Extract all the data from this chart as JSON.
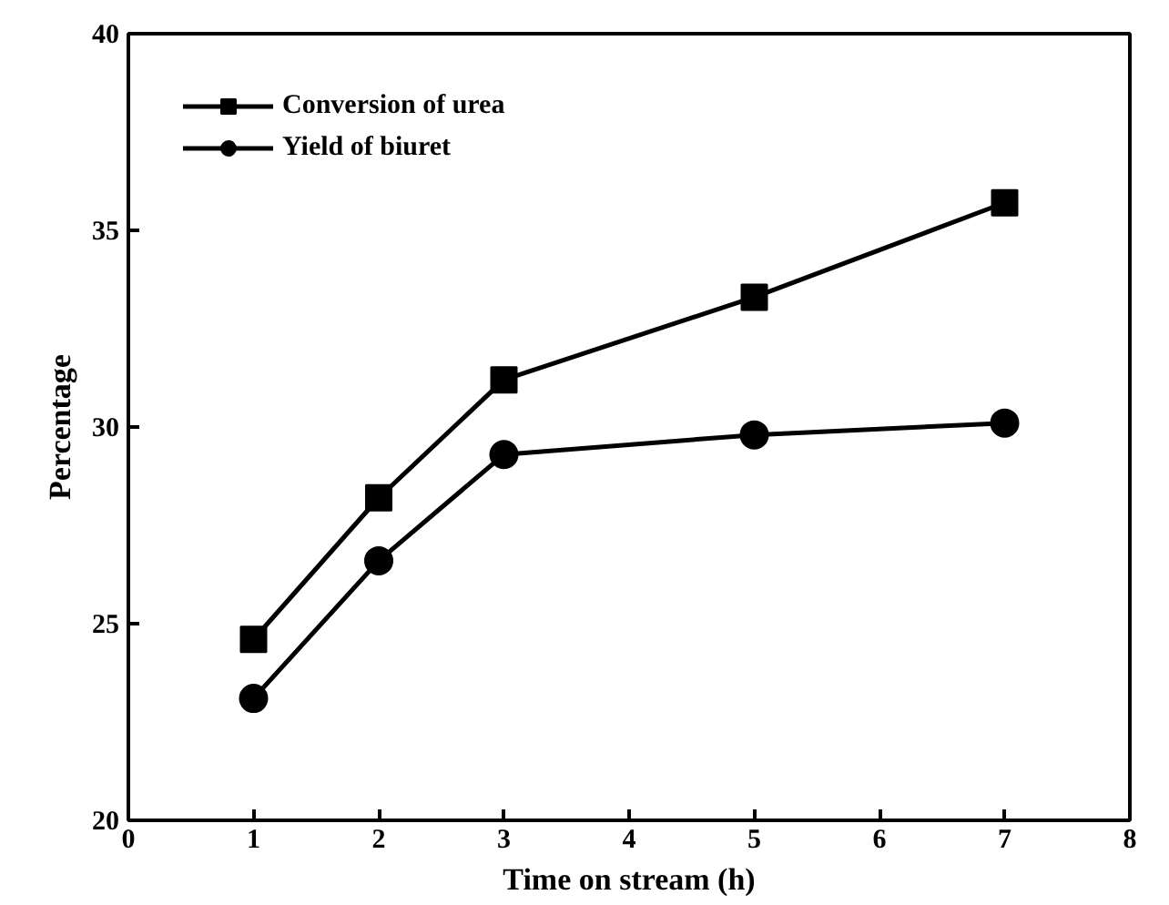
{
  "chart_data": {
    "type": "line",
    "xlabel": "Time on stream (h)",
    "ylabel": "Percentage",
    "x": [
      1,
      2,
      3,
      5,
      7
    ],
    "series": [
      {
        "name": "Conversion of urea",
        "color": "#000000",
        "marker": "square",
        "values": [
          24.6,
          28.2,
          31.2,
          33.3,
          35.7
        ]
      },
      {
        "name": "Yield of biuret",
        "color": "#000000",
        "marker": "circle",
        "values": [
          23.1,
          26.6,
          29.3,
          29.8,
          30.1
        ]
      }
    ],
    "xlim": [
      0,
      8
    ],
    "xticks": [
      0,
      1,
      2,
      3,
      4,
      5,
      6,
      7,
      8
    ],
    "ylim": [
      20,
      40
    ],
    "yticks": [
      20,
      25,
      30,
      35,
      40
    ],
    "grid": false,
    "legend": "top left",
    "line_style": "solid"
  }
}
